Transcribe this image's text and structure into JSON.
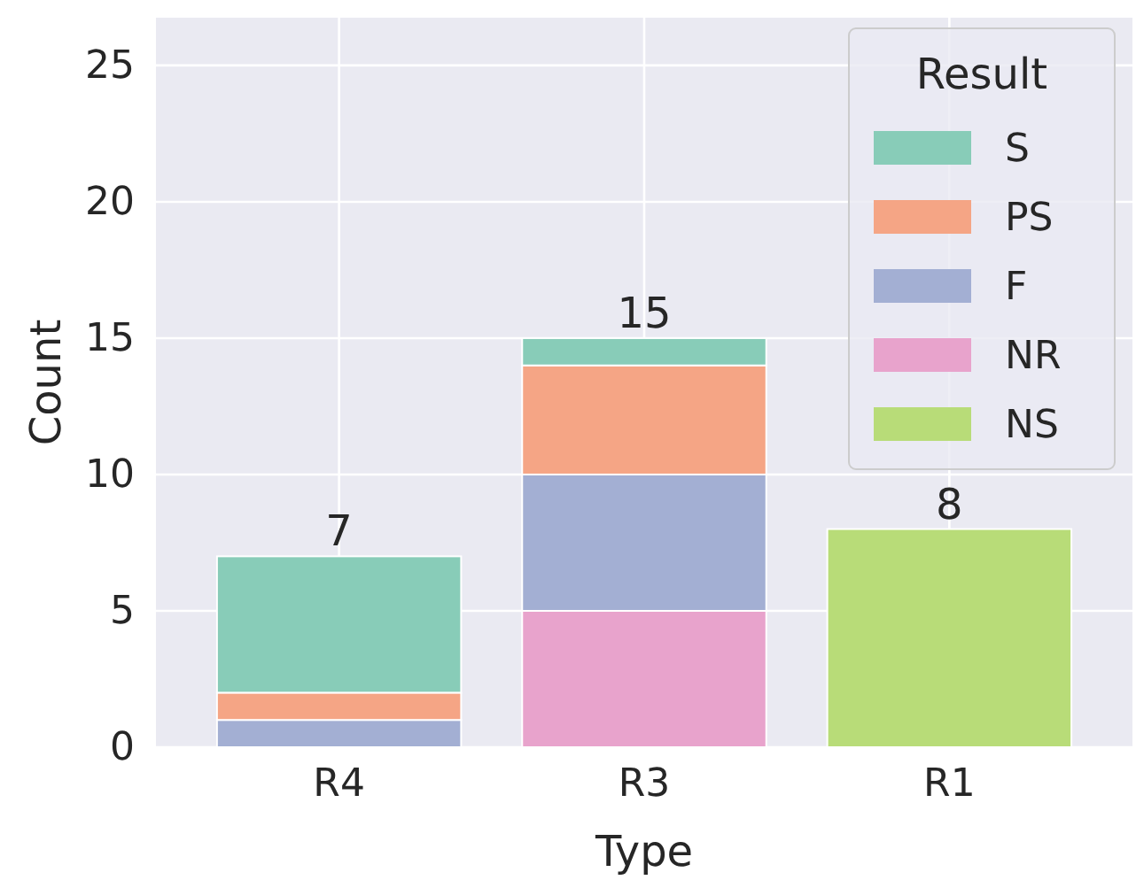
{
  "chart_data": {
    "type": "bar",
    "stacked": true,
    "xlabel": "Type",
    "ylabel": "Count",
    "legend_title": "Result",
    "categories": [
      "R4",
      "R3",
      "R1"
    ],
    "series": [
      {
        "name": "NS",
        "color": "#b8dc78",
        "values": [
          null,
          null,
          8
        ]
      },
      {
        "name": "NR",
        "color": "#e8a3cc",
        "values": [
          null,
          5,
          null
        ]
      },
      {
        "name": "F",
        "color": "#a3afd3",
        "values": [
          1,
          5,
          null
        ]
      },
      {
        "name": "PS",
        "color": "#f5a585",
        "values": [
          1,
          4,
          null
        ]
      },
      {
        "name": "S",
        "color": "#88ccb8",
        "values": [
          5,
          1,
          null
        ]
      }
    ],
    "totals": [
      "7",
      "15",
      "8"
    ],
    "ylim": [
      0,
      26.75
    ],
    "yticks": [
      0,
      5,
      10,
      15,
      20,
      25
    ],
    "grid": true,
    "legend": "top right"
  }
}
